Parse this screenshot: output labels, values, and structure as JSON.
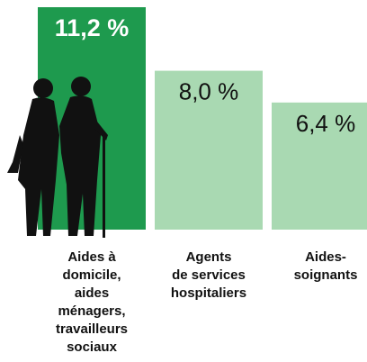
{
  "chart_data": {
    "type": "bar",
    "categories": [
      "Aides à\ndomicile,\naides\nménagers,\ntravailleurs\nsociaux",
      "Agents\nde services\nhospitaliers",
      "Aides-\nsoignants"
    ],
    "values": [
      11.2,
      8.0,
      6.4
    ],
    "value_labels": [
      "11,2 %",
      "8,0 %",
      "6,4 %"
    ],
    "colors": [
      "#1e9a4e",
      "#a9d9b2",
      "#a9d9b2"
    ]
  }
}
